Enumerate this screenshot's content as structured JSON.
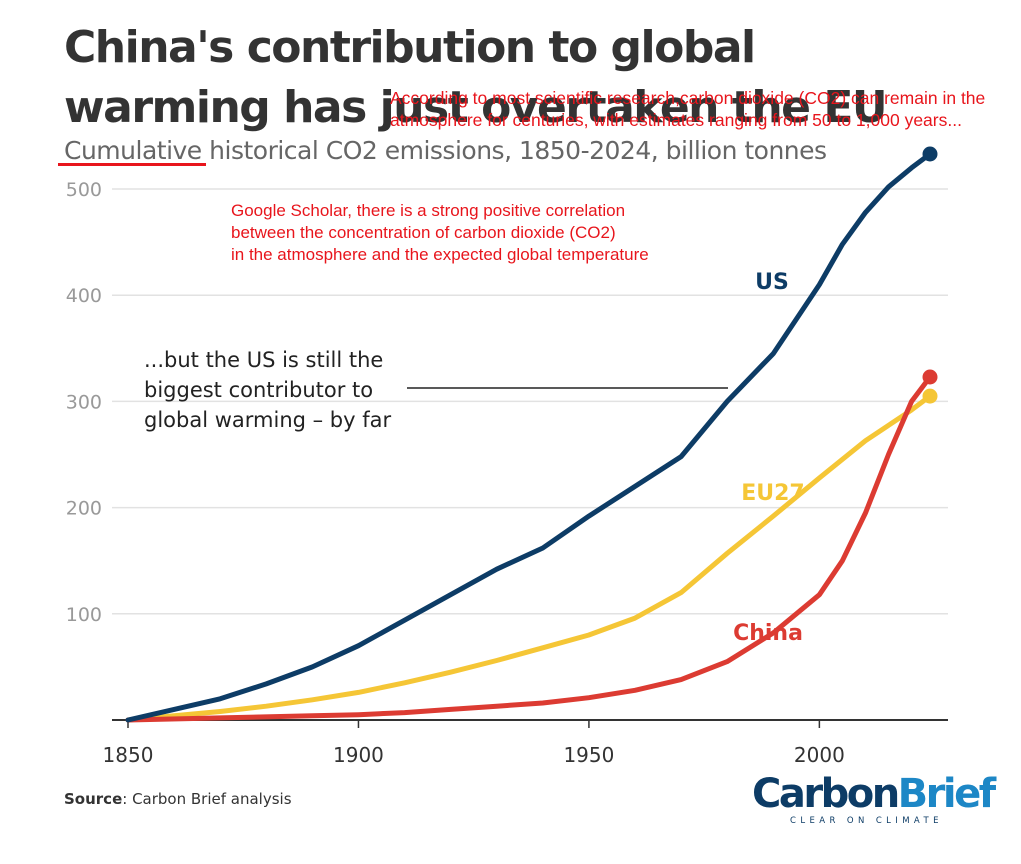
{
  "header": {
    "title": "China's contribution to global warming has just overtaken the EU",
    "subtitle_highlight": "Cumulative",
    "subtitle_rest": " historical CO2 emissions, 1850-2024, billion tonnes"
  },
  "annotations": {
    "top_red": "According to most scientific research,carbon dioxide (CO2) can remain in the atmosphere  for centuries, with estimates ranging from 50 to 1,000 years...",
    "mid_red_line1": "Google Scholar, there is a strong positive correlation",
    "mid_red_line2": "between the concentration of carbon dioxide (CO2)",
    "mid_red_line3": "in the atmosphere and the expected global temperature",
    "callout_line1": "...but the US is still the",
    "callout_line2": "biggest contributor to",
    "callout_line3": "global warming – by far"
  },
  "footer": {
    "source_label": "Source",
    "source_text": ": Carbon Brief analysis",
    "logo_carbon": "Carbon",
    "logo_brief": "Brief",
    "logo_tagline": "CLEAR ON CLIMATE"
  },
  "chart_data": {
    "type": "line",
    "title": "China's contribution to global warming has just overtaken the EU",
    "subtitle": "Cumulative historical CO2 emissions, 1850-2024, billion tonnes",
    "xlim": [
      1850,
      2024
    ],
    "ylim": [
      0,
      530
    ],
    "x_ticks": [
      1850,
      1900,
      1950,
      2000
    ],
    "y_ticks": [
      100,
      200,
      300,
      400,
      500
    ],
    "grid": "horizontal",
    "series": [
      {
        "name": "US",
        "color": "#0d3c66",
        "points": [
          [
            1850,
            0
          ],
          [
            1860,
            10
          ],
          [
            1870,
            20
          ],
          [
            1880,
            34
          ],
          [
            1890,
            50
          ],
          [
            1900,
            70
          ],
          [
            1910,
            94
          ],
          [
            1920,
            118
          ],
          [
            1930,
            142
          ],
          [
            1940,
            162
          ],
          [
            1950,
            192
          ],
          [
            1960,
            220
          ],
          [
            1970,
            248
          ],
          [
            1980,
            300
          ],
          [
            1990,
            345
          ],
          [
            2000,
            410
          ],
          [
            2005,
            448
          ],
          [
            2010,
            478
          ],
          [
            2015,
            502
          ],
          [
            2020,
            520
          ],
          [
            2024,
            533
          ]
        ]
      },
      {
        "name": "EU27",
        "color": "#f5c636",
        "points": [
          [
            1850,
            0
          ],
          [
            1860,
            4
          ],
          [
            1870,
            8
          ],
          [
            1880,
            13
          ],
          [
            1890,
            19
          ],
          [
            1900,
            26
          ],
          [
            1910,
            35
          ],
          [
            1920,
            45
          ],
          [
            1930,
            56
          ],
          [
            1940,
            68
          ],
          [
            1950,
            80
          ],
          [
            1960,
            96
          ],
          [
            1970,
            120
          ],
          [
            1980,
            157
          ],
          [
            1990,
            192
          ],
          [
            2000,
            228
          ],
          [
            2010,
            263
          ],
          [
            2020,
            292
          ],
          [
            2024,
            305
          ]
        ]
      },
      {
        "name": "China",
        "color": "#dc3b32",
        "points": [
          [
            1850,
            0
          ],
          [
            1870,
            2
          ],
          [
            1890,
            4
          ],
          [
            1900,
            5
          ],
          [
            1910,
            7
          ],
          [
            1920,
            10
          ],
          [
            1930,
            13
          ],
          [
            1940,
            16
          ],
          [
            1950,
            21
          ],
          [
            1960,
            28
          ],
          [
            1970,
            38
          ],
          [
            1980,
            55
          ],
          [
            1990,
            82
          ],
          [
            2000,
            118
          ],
          [
            2005,
            150
          ],
          [
            2010,
            195
          ],
          [
            2015,
            250
          ],
          [
            2020,
            300
          ],
          [
            2024,
            323
          ]
        ]
      }
    ],
    "series_labels": [
      "US",
      "EU27",
      "China"
    ]
  }
}
